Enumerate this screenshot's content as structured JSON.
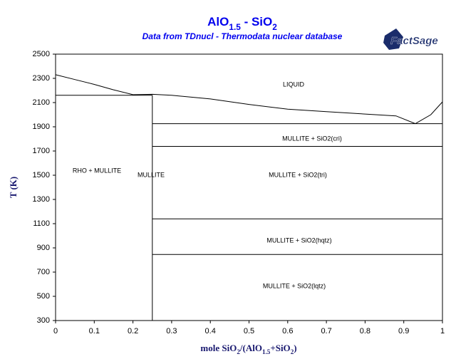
{
  "chart_data": {
    "type": "line",
    "title": [
      {
        "text": "AlO"
      },
      {
        "text": "1.5",
        "sub": true
      },
      {
        "text": " - SiO"
      },
      {
        "text": "2",
        "sub": true
      }
    ],
    "subtitle": "Data from TDnucl - Thermodata nuclear database",
    "logo": "FactSage",
    "xlabel": [
      {
        "text": "mole SiO"
      },
      {
        "text": "2",
        "sub": true
      },
      {
        "text": "/(AlO"
      },
      {
        "text": "1.5",
        "sub": true
      },
      {
        "text": "+SiO"
      },
      {
        "text": "2",
        "sub": true
      },
      {
        "text": ")"
      }
    ],
    "ylabel": "T (K)",
    "xlim": [
      0,
      1
    ],
    "xticks": [
      0,
      0.1,
      0.2,
      0.3,
      0.4,
      0.5,
      0.6,
      0.7,
      0.8,
      0.9,
      1
    ],
    "ylim": [
      300,
      2500
    ],
    "yticks": [
      300,
      500,
      700,
      900,
      1100,
      1300,
      1500,
      1700,
      1900,
      2100,
      2300,
      2500
    ],
    "color": "#000000",
    "series": [
      {
        "x": [
          0,
          0.05,
          0.1,
          0.15,
          0.2
        ],
        "values": [
          2330,
          2290,
          2250,
          2205,
          2165
        ]
      },
      {
        "x": [
          0.2,
          0.25,
          0.3,
          0.4,
          0.5,
          0.6,
          0.7,
          0.8,
          0.88,
          0.93
        ],
        "values": [
          2165,
          2168,
          2160,
          2130,
          2085,
          2045,
          2025,
          2005,
          1990,
          1926
        ]
      },
      {
        "x": [
          0.93,
          0.97,
          1
        ],
        "values": [
          1926,
          2000,
          2106
        ]
      },
      {
        "x": [
          0,
          0.25
        ],
        "values": [
          2160,
          2160
        ]
      },
      {
        "x": [
          0.25,
          0.25
        ],
        "values": [
          2160,
          300
        ]
      },
      {
        "x": [
          0.25,
          1
        ],
        "values": [
          1926,
          1926
        ]
      },
      {
        "x": [
          0.25,
          1
        ],
        "values": [
          1738,
          1738
        ]
      },
      {
        "x": [
          0.25,
          1
        ],
        "values": [
          1140,
          1140
        ]
      },
      {
        "x": [
          0.25,
          1
        ],
        "values": [
          846,
          846
        ]
      }
    ],
    "annotations": [
      "LIQUID",
      "MULLITE + SiO2(cri)",
      "RHO + MULLITE",
      "MULLITE",
      "MULLITE + SiO2(tri)",
      "MULLITE + SiO2(hqtz)",
      "MULLITE + SiO2(lqtz)"
    ]
  }
}
